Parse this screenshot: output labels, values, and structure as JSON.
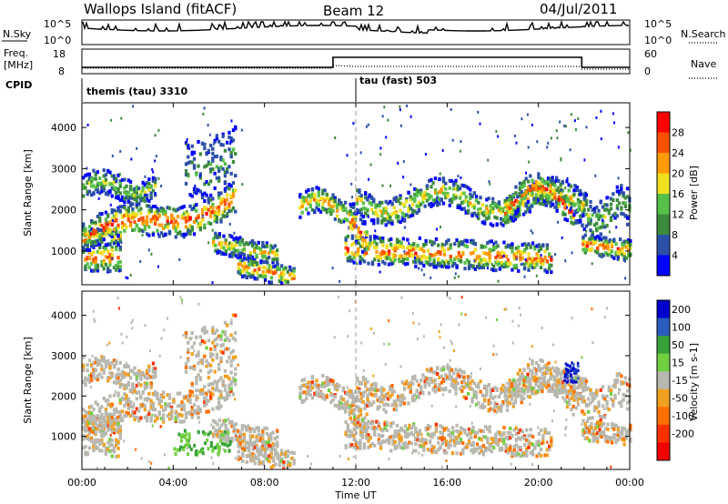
{
  "header": {
    "station": "Wallops Island (fitACF)",
    "beam": "Beam 12",
    "date": "04/Jul/2011"
  },
  "nsky_panel": {
    "left_label": "N.Sky",
    "right_label": "N.Search",
    "left_ticks": [
      "10^5",
      "10^0"
    ],
    "right_ticks": [
      "10^5",
      "10^0"
    ]
  },
  "freq_panel": {
    "left_label_1": "Freq.",
    "left_label_2": "[MHz]",
    "right_label": "Nave",
    "left_ticks": [
      "18",
      "8"
    ],
    "right_ticks": [
      "60",
      "0"
    ]
  },
  "cpid": {
    "label": "CPID",
    "segments": [
      {
        "name": "themis (tau) 3310",
        "start_hour": 0
      },
      {
        "name": "tau (fast) 503",
        "start_hour": 12
      }
    ]
  },
  "colors": {
    "power": [
      "#0000ff",
      "#2c4fa8",
      "#3c8a3c",
      "#56c048",
      "#f0e020",
      "#ff9a00",
      "#ff5000",
      "#ff0000"
    ],
    "velocity": [
      "#0000cc",
      "#2a5cc0",
      "#38a038",
      "#70d040",
      "#b8b8b0",
      "#f0a020",
      "#ff7000",
      "#ff3000",
      "#ee0000"
    ]
  },
  "chart_data": [
    {
      "type": "heatmap",
      "name": "power",
      "ylabel": "Slant Range [km]",
      "colorbar_label": "Power [dB]",
      "colorbar_ticks": [
        "4",
        "8",
        "12",
        "16",
        "20",
        "24",
        "28"
      ],
      "y_ticks": [
        1000,
        2000,
        3000,
        4000
      ],
      "ylim": [
        180,
        4600
      ],
      "xlim": [
        0,
        24
      ]
    },
    {
      "type": "heatmap",
      "name": "velocity",
      "ylabel": "Slant Range [km]",
      "colorbar_label": "Velocity [m s-1]",
      "colorbar_ticks": [
        "200",
        "100",
        "50",
        "15",
        "-15",
        "-50",
        "-100",
        "-200"
      ],
      "y_ticks": [
        1000,
        2000,
        3000,
        4000
      ],
      "ylim": [
        180,
        4600
      ],
      "xlim": [
        0,
        24
      ]
    }
  ],
  "x_axis": {
    "label": "Time UT",
    "ticks": [
      "00:00",
      "04:00",
      "08:00",
      "12:00",
      "16:00",
      "20:00",
      "00:00"
    ]
  }
}
